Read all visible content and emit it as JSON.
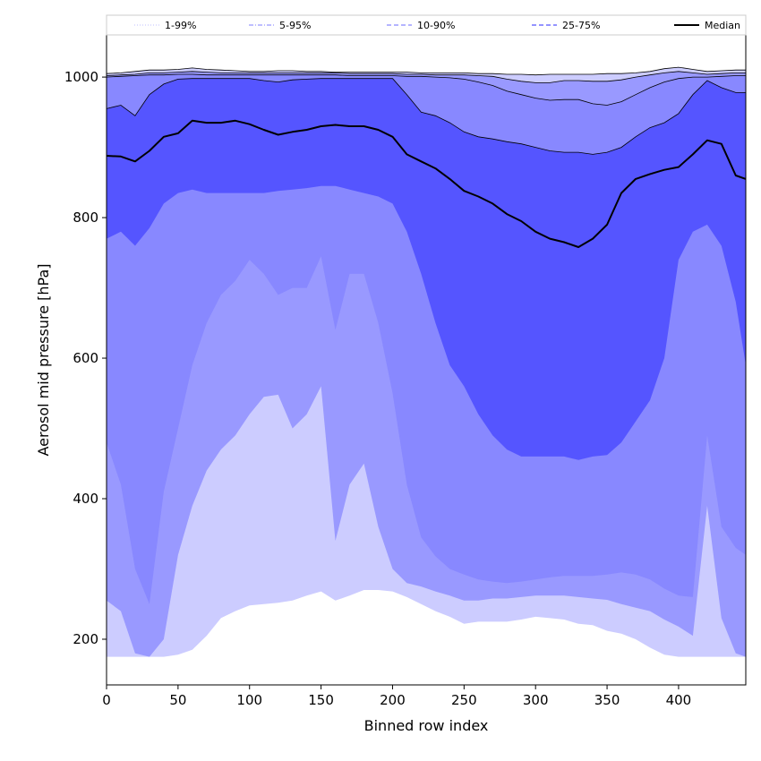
{
  "chart_data": {
    "type": "area",
    "title": "",
    "xlabel": "Binned row index",
    "ylabel": "Aerosol mid pressure [hPa]",
    "xlim": [
      0,
      447
    ],
    "ylim": [
      135,
      1060
    ],
    "x_ticks": [
      0,
      50,
      100,
      150,
      200,
      250,
      300,
      350,
      400
    ],
    "y_ticks": [
      200,
      400,
      600,
      800,
      1000
    ],
    "grid": false,
    "legend_position": "top",
    "legend": [
      {
        "label": "1-99%",
        "style": "dotted",
        "color": "#ccccff"
      },
      {
        "label": "5-95%",
        "style": "dashdot",
        "color": "#9999ff"
      },
      {
        "label": "10-90%",
        "style": "dashed",
        "color": "#8888ff"
      },
      {
        "label": "25-75%",
        "style": "dashed",
        "color": "#5555ff"
      },
      {
        "label": "Median",
        "style": "solid",
        "color": "#000000"
      }
    ],
    "x": [
      0,
      10,
      20,
      30,
      40,
      50,
      60,
      70,
      80,
      90,
      100,
      110,
      120,
      130,
      140,
      150,
      160,
      170,
      180,
      190,
      200,
      210,
      220,
      230,
      240,
      250,
      260,
      270,
      280,
      290,
      300,
      310,
      320,
      330,
      340,
      350,
      360,
      370,
      380,
      390,
      400,
      410,
      420,
      430,
      440,
      447
    ],
    "bands": [
      {
        "name": "1-99%",
        "color": "#ccccff",
        "upper": [
          1005,
          1006,
          1008,
          1010,
          1010,
          1011,
          1013,
          1011,
          1010,
          1009,
          1008,
          1008,
          1009,
          1009,
          1008,
          1008,
          1007,
          1007,
          1007,
          1007,
          1007,
          1007,
          1006,
          1006,
          1006,
          1006,
          1005,
          1005,
          1004,
          1004,
          1003,
          1004,
          1004,
          1004,
          1004,
          1005,
          1005,
          1006,
          1008,
          1012,
          1014,
          1011,
          1008,
          1009,
          1010,
          1010
        ],
        "lower": [
          175,
          175,
          175,
          175,
          175,
          178,
          185,
          205,
          230,
          240,
          248,
          250,
          252,
          255,
          262,
          268,
          255,
          262,
          270,
          270,
          268,
          260,
          250,
          240,
          232,
          222,
          225,
          225,
          225,
          228,
          232,
          230,
          228,
          222,
          220,
          212,
          208,
          200,
          188,
          178,
          175,
          175,
          175,
          175,
          175,
          175
        ]
      },
      {
        "name": "5-95%",
        "color": "#9999ff",
        "upper": [
          1002,
          1003,
          1004,
          1006,
          1006,
          1007,
          1008,
          1007,
          1006,
          1006,
          1006,
          1006,
          1006,
          1006,
          1006,
          1006,
          1006,
          1005,
          1005,
          1005,
          1005,
          1004,
          1004,
          1003,
          1003,
          1003,
          1002,
          1001,
          997,
          994,
          992,
          992,
          995,
          995,
          994,
          994,
          996,
          1000,
          1003,
          1006,
          1008,
          1006,
          1004,
          1005,
          1006,
          1006
        ],
        "lower": [
          255,
          240,
          180,
          175,
          200,
          320,
          390,
          440,
          470,
          490,
          520,
          545,
          548,
          500,
          520,
          560,
          340,
          420,
          450,
          360,
          300,
          280,
          275,
          268,
          262,
          255,
          255,
          258,
          258,
          260,
          262,
          262,
          262,
          260,
          258,
          256,
          250,
          245,
          240,
          228,
          218,
          205,
          390,
          230,
          180,
          175
        ]
      },
      {
        "name": "10-90%",
        "color": "#8888ff",
        "upper": [
          1000,
          1001,
          1002,
          1003,
          1003,
          1004,
          1004,
          1003,
          1003,
          1003,
          1003,
          1003,
          1003,
          1003,
          1003,
          1003,
          1003,
          1002,
          1002,
          1002,
          1002,
          1001,
          1001,
          1000,
          999,
          997,
          993,
          988,
          980,
          975,
          970,
          967,
          968,
          968,
          962,
          960,
          965,
          975,
          985,
          993,
          998,
          1000,
          1000,
          1001,
          1002,
          1002
        ],
        "lower": [
          480,
          420,
          300,
          250,
          410,
          500,
          590,
          650,
          690,
          710,
          740,
          720,
          690,
          700,
          700,
          745,
          640,
          720,
          720,
          650,
          550,
          420,
          345,
          318,
          300,
          292,
          285,
          282,
          280,
          282,
          285,
          288,
          290,
          290,
          290,
          292,
          295,
          292,
          285,
          272,
          262,
          260,
          490,
          360,
          330,
          320
        ]
      },
      {
        "name": "25-75%",
        "color": "#5555ff",
        "upper": [
          955,
          960,
          945,
          975,
          990,
          997,
          998,
          998,
          998,
          998,
          998,
          995,
          993,
          996,
          997,
          998,
          998,
          998,
          998,
          998,
          998,
          975,
          950,
          945,
          935,
          922,
          915,
          912,
          908,
          905,
          900,
          895,
          893,
          893,
          890,
          893,
          900,
          915,
          928,
          935,
          948,
          975,
          995,
          985,
          978,
          978
        ],
        "lower": [
          770,
          780,
          760,
          785,
          820,
          835,
          840,
          835,
          835,
          835,
          835,
          835,
          838,
          840,
          842,
          845,
          845,
          840,
          835,
          830,
          820,
          780,
          720,
          650,
          590,
          560,
          520,
          490,
          470,
          460,
          460,
          460,
          460,
          455,
          460,
          462,
          480,
          510,
          540,
          600,
          740,
          780,
          790,
          760,
          680,
          590
        ]
      }
    ],
    "median": {
      "name": "Median",
      "color": "#000000",
      "values": [
        888,
        887,
        880,
        895,
        915,
        920,
        938,
        935,
        935,
        938,
        933,
        925,
        918,
        922,
        925,
        930,
        932,
        930,
        930,
        925,
        915,
        890,
        880,
        870,
        855,
        838,
        830,
        820,
        805,
        795,
        780,
        770,
        765,
        758,
        770,
        790,
        835,
        855,
        862,
        868,
        872,
        890,
        910,
        905,
        860,
        855
      ]
    }
  }
}
